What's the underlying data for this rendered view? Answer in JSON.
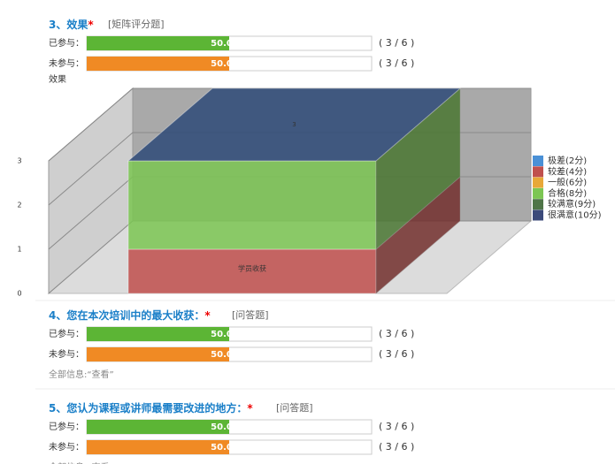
{
  "questions": [
    {
      "number": "3、",
      "title": "效果",
      "required": "*",
      "type": "[矩阵评分题]",
      "rows": [
        {
          "label": "已参与：",
          "value": 50,
          "percent": "50.00%",
          "count": "( 3 / 6 )"
        },
        {
          "label": "未参与：",
          "value": 50,
          "percent": "50.00%",
          "count": "( 3 / 6 )"
        }
      ]
    },
    {
      "number": "4、",
      "title": "您在本次培训中的最大收获：",
      "required": "*",
      "type": "[问答题]",
      "rows": [
        {
          "label": "已参与：",
          "value": 50,
          "percent": "50.00%",
          "count": "( 3 / 6 )"
        },
        {
          "label": "未参与：",
          "value": 50,
          "percent": "50.00%",
          "count": "( 3 / 6 )"
        }
      ],
      "all_info": "全部信息:“查看”"
    },
    {
      "number": "5、",
      "title": "您认为课程或讲师最需要改进的地方：",
      "required": "*",
      "type": "[问答题]",
      "rows": [
        {
          "label": "已参与：",
          "value": 50,
          "percent": "50.00%",
          "count": "( 3 / 6 )"
        },
        {
          "label": "未参与：",
          "value": 50,
          "percent": "50.00%",
          "count": "( 3 / 6 )"
        }
      ],
      "all_info": "全部信息:“查看”"
    }
  ],
  "chart_data": {
    "type": "bar3d",
    "title": "效果",
    "categories": [
      "学员收获"
    ],
    "total": 3,
    "series": [
      {
        "name": "极差(2分)",
        "color": "#4a90d6",
        "values": [
          0
        ]
      },
      {
        "name": "较差(4分)",
        "color": "#c0504d",
        "values": [
          1
        ]
      },
      {
        "name": "一般(6分)",
        "color": "#e8a838",
        "values": [
          0
        ]
      },
      {
        "name": "合格(8分)",
        "color": "#7cc653",
        "values": [
          2
        ]
      },
      {
        "name": "较满意(9分)",
        "color": "#4f7548",
        "values": [
          0
        ]
      },
      {
        "name": "很满意(10分)",
        "color": "#3b4a7a",
        "values": [
          0
        ]
      }
    ],
    "ylim": [
      0,
      3
    ],
    "yticks": [
      0,
      1,
      2,
      3
    ],
    "grid": true,
    "legend": "right"
  }
}
